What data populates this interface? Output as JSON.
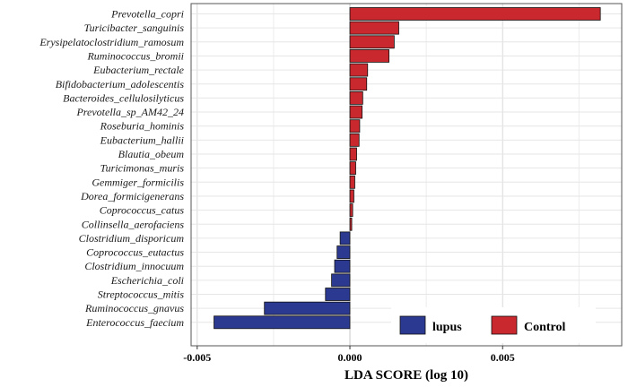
{
  "chart_data": {
    "type": "bar",
    "orientation": "horizontal",
    "xlabel": "LDA SCORE (log 10)",
    "xlim": [
      -0.0052,
      0.0089
    ],
    "xticks": [
      -0.005,
      0,
      0.005
    ],
    "xtick_labels": [
      "-0.005",
      "0.000",
      "0.005"
    ],
    "grid": true,
    "legend_position": "bottom-right",
    "colors": {
      "lupus": "#2b3990",
      "Control": "#c8282e"
    },
    "series": [
      {
        "name": "lupus"
      },
      {
        "name": "Control"
      }
    ],
    "bars": [
      {
        "category": "Prevotella_copri",
        "value": 0.0082,
        "group": "Control"
      },
      {
        "category": "Turicibacter_sanguinis",
        "value": 0.0016,
        "group": "Control"
      },
      {
        "category": "Erysipelatoclostridium_ramosum",
        "value": 0.00145,
        "group": "Control"
      },
      {
        "category": "Ruminococcus_bromii",
        "value": 0.00128,
        "group": "Control"
      },
      {
        "category": "Eubacterium_rectale",
        "value": 0.00058,
        "group": "Control"
      },
      {
        "category": "Bifidobacterium_adolescentis",
        "value": 0.00055,
        "group": "Control"
      },
      {
        "category": "Bacteroides_cellulosilyticus",
        "value": 0.00042,
        "group": "Control"
      },
      {
        "category": "Prevotella_sp_AM42_24",
        "value": 0.0004,
        "group": "Control"
      },
      {
        "category": "Roseburia_hominis",
        "value": 0.00032,
        "group": "Control"
      },
      {
        "category": "Eubacterium_hallii",
        "value": 0.0003,
        "group": "Control"
      },
      {
        "category": "Blautia_obeum",
        "value": 0.00022,
        "group": "Control"
      },
      {
        "category": "Turicimonas_muris",
        "value": 0.00019,
        "group": "Control"
      },
      {
        "category": "Gemmiger_formicilis",
        "value": 0.00016,
        "group": "Control"
      },
      {
        "category": "Dorea_formicigenerans",
        "value": 0.00013,
        "group": "Control"
      },
      {
        "category": "Coprococcus_catus",
        "value": 9e-05,
        "group": "Control"
      },
      {
        "category": "Collinsella_aerofaciens",
        "value": 6e-05,
        "group": "Control"
      },
      {
        "category": "Clostridium_disporicum",
        "value": -0.00032,
        "group": "lupus"
      },
      {
        "category": "Coprococcus_eutactus",
        "value": -0.00042,
        "group": "lupus"
      },
      {
        "category": "Clostridium_innocuum",
        "value": -0.0005,
        "group": "lupus"
      },
      {
        "category": "Escherichia_coli",
        "value": -0.0006,
        "group": "lupus"
      },
      {
        "category": "Streptococcus_mitis",
        "value": -0.0008,
        "group": "lupus"
      },
      {
        "category": "Ruminococcus_gnavus",
        "value": -0.0028,
        "group": "lupus"
      },
      {
        "category": "Enterococcus_faecium",
        "value": -0.00445,
        "group": "lupus"
      }
    ]
  }
}
